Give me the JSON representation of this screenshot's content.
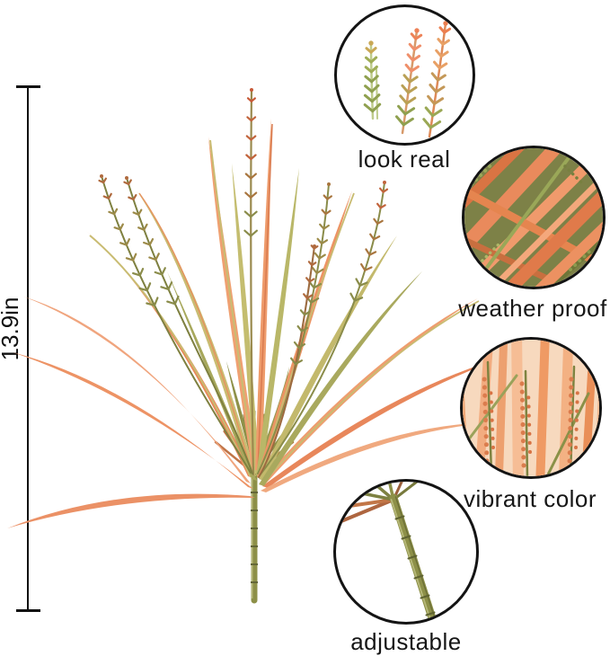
{
  "measurement": {
    "label": "13.9in"
  },
  "callouts": {
    "look_real": {
      "label": "look real"
    },
    "weather_proof": {
      "label": "weather proof"
    },
    "vibrant_color": {
      "label": "vibrant color"
    },
    "adjustable": {
      "label": "adjustable"
    }
  },
  "colors": {
    "background": "#ffffff",
    "annotation_black": "#141414",
    "blade_salmon": "#ED9365",
    "blade_peach": "#F0A57E",
    "blade_red_orange": "#D9713F",
    "blade_yellow_green": "#C4BD6F",
    "stem_olive": "#8D9048",
    "bud_olive": "#8A8C4A",
    "bud_orange": "#C2643C"
  }
}
